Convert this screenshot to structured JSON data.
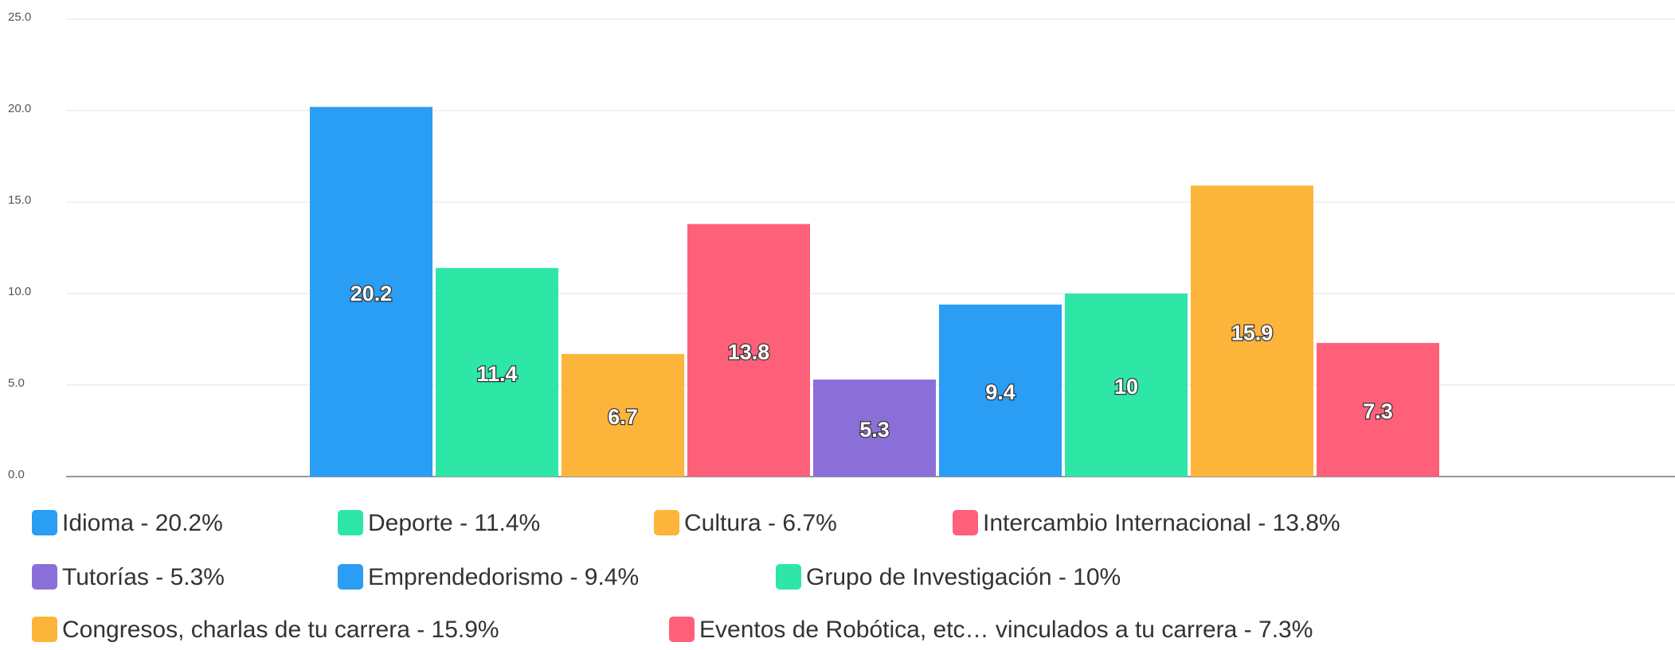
{
  "chart_data": {
    "type": "bar",
    "series": [
      {
        "name": "Idioma - 20.2%",
        "color": "#2a9df4",
        "values": [
          20.2
        ]
      },
      {
        "name": "Deporte - 11.4%",
        "color": "#2ee6a6",
        "values": [
          11.4
        ]
      },
      {
        "name": "Cultura - 6.7%",
        "color": "#fdb43a",
        "values": [
          6.7
        ]
      },
      {
        "name": "Intercambio Internacional - 13.8%",
        "color": "#fe6079",
        "values": [
          13.8
        ]
      },
      {
        "name": "Tutorías - 5.3%",
        "color": "#8b6fd8",
        "values": [
          5.3
        ]
      },
      {
        "name": "Emprendedorismo - 9.4%",
        "color": "#2a9df4",
        "values": [
          9.4
        ]
      },
      {
        "name": "Grupo de Investigación - 10%",
        "color": "#2ee6a6",
        "values": [
          10
        ]
      },
      {
        "name": "Congresos, charlas de tu carrera - 15.9%",
        "color": "#fdb43a",
        "values": [
          15.9
        ]
      },
      {
        "name": "Eventos de Robótica, etc… vinculados a tu carrera - 7.3%",
        "color": "#fe6079",
        "values": [
          7.3
        ]
      }
    ],
    "ylim": [
      0,
      25
    ],
    "yticks": [
      {
        "value": 0,
        "label": "0.0"
      },
      {
        "value": 5,
        "label": "5.0"
      },
      {
        "value": 10,
        "label": "10.0"
      },
      {
        "value": 15,
        "label": "15.0"
      },
      {
        "value": 20,
        "label": "20.0"
      },
      {
        "value": 25,
        "label": "25.0"
      }
    ],
    "grid": true
  }
}
